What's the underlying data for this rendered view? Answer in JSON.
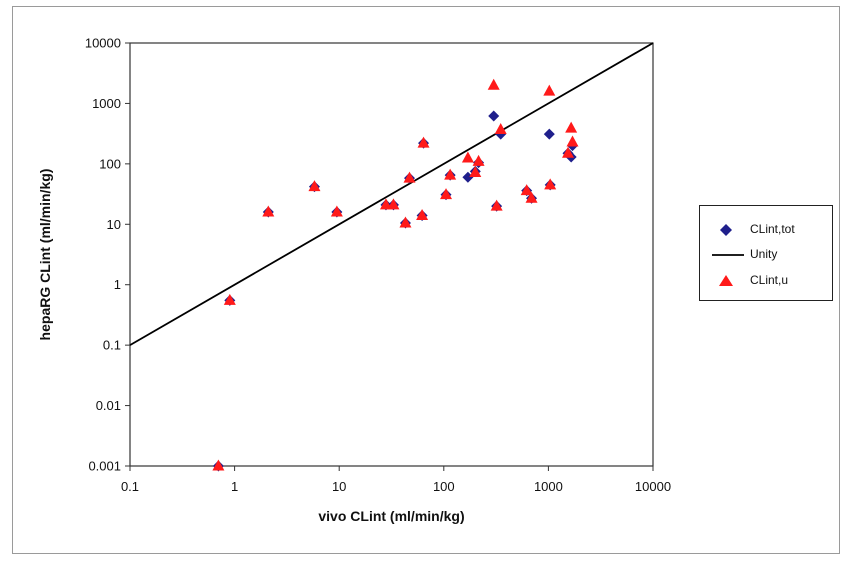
{
  "chart_data": {
    "type": "scatter",
    "xlabel": "vivo CLint (ml/min/kg)",
    "ylabel": "hepaRG CLint (ml/min/kg)",
    "x_scale": "log",
    "y_scale": "log",
    "xlim": [
      0.1,
      10000
    ],
    "ylim": [
      0.001,
      10000
    ],
    "x_ticks": [
      "0.1",
      "1",
      "10",
      "100",
      "1000",
      "10000"
    ],
    "y_ticks": [
      "0.001",
      "0.01",
      "0.1",
      "1",
      "10",
      "100",
      "1000",
      "10000"
    ],
    "grid": false,
    "legend_position": "right",
    "colors": {
      "tot": "#1f1f8c",
      "unity": "#000000",
      "u": "#ff1a1a"
    },
    "series": [
      {
        "name": "CLint,tot",
        "marker": "diamond",
        "points": [
          [
            0.7,
            0.001
          ],
          [
            0.9,
            0.55
          ],
          [
            2.1,
            16
          ],
          [
            5.8,
            42
          ],
          [
            9.5,
            16
          ],
          [
            28,
            21
          ],
          [
            33,
            21
          ],
          [
            43,
            10.5
          ],
          [
            47,
            58
          ],
          [
            62,
            14
          ],
          [
            64,
            220
          ],
          [
            105,
            31
          ],
          [
            115,
            65
          ],
          [
            170,
            60
          ],
          [
            200,
            75
          ],
          [
            215,
            105
          ],
          [
            300,
            620
          ],
          [
            320,
            20
          ],
          [
            350,
            310
          ],
          [
            620,
            36
          ],
          [
            690,
            27
          ],
          [
            1020,
            310
          ],
          [
            1040,
            45
          ],
          [
            1540,
            150
          ],
          [
            1650,
            130
          ],
          [
            1700,
            200
          ]
        ]
      },
      {
        "name": "Unity",
        "type": "line",
        "points": [
          [
            0.1,
            0.1
          ],
          [
            10000,
            10000
          ]
        ]
      },
      {
        "name": "CLint,u",
        "marker": "triangle",
        "points": [
          [
            0.7,
            0.001
          ],
          [
            0.9,
            0.55
          ],
          [
            2.1,
            16
          ],
          [
            5.8,
            42
          ],
          [
            9.5,
            16
          ],
          [
            28,
            21
          ],
          [
            33,
            21
          ],
          [
            43,
            10.5
          ],
          [
            47,
            58
          ],
          [
            62,
            14
          ],
          [
            64,
            220
          ],
          [
            105,
            31
          ],
          [
            115,
            65
          ],
          [
            170,
            125
          ],
          [
            200,
            72
          ],
          [
            215,
            110
          ],
          [
            300,
            2000
          ],
          [
            320,
            20
          ],
          [
            350,
            370
          ],
          [
            620,
            36
          ],
          [
            690,
            27
          ],
          [
            1020,
            1600
          ],
          [
            1040,
            45
          ],
          [
            1540,
            150
          ],
          [
            1650,
            390
          ],
          [
            1700,
            230
          ]
        ]
      }
    ]
  }
}
